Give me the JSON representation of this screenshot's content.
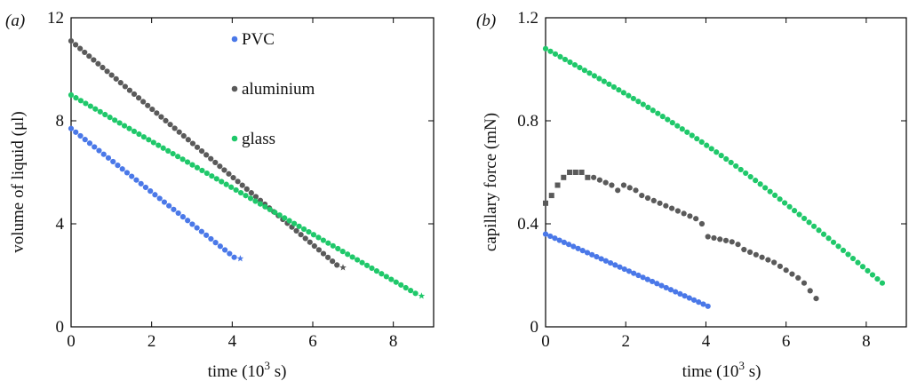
{
  "colors": {
    "PVC": "#4a78e8",
    "aluminium": "#5a5a5a",
    "glass": "#1fc86a"
  },
  "chart_data": [
    {
      "type": "scatter",
      "panel_label": "(a)",
      "xlabel": "time (10",
      "xlabel_sup": "3",
      "xlabel_end": " s)",
      "ylabel": "volume of liquid (μl)",
      "xlim": [
        0,
        9
      ],
      "ylim": [
        0,
        12
      ],
      "xticks": [
        0,
        2,
        4,
        6,
        8
      ],
      "yticks": [
        0,
        4,
        8,
        12
      ],
      "legend": {
        "position": "top-center",
        "entries": [
          "PVC",
          "aluminium",
          "glass"
        ]
      },
      "series": [
        {
          "name": "PVC",
          "color": "#4a78e8",
          "x_start": 0.0,
          "x_end": 4.05,
          "y_start": 7.7,
          "y_end": 2.7,
          "n": 36,
          "end_marker": "star",
          "end_point": [
            4.2,
            2.65
          ]
        },
        {
          "name": "aluminium",
          "color": "#5a5a5a",
          "x_start": 0.0,
          "x_end": 6.6,
          "y_start": 11.1,
          "y_end": 2.4,
          "n": 60,
          "end_marker": "star",
          "end_point": [
            6.75,
            2.3
          ]
        },
        {
          "name": "glass",
          "color": "#1fc86a",
          "x_start": 0.0,
          "x_end": 8.55,
          "y_start": 9.0,
          "y_end": 1.3,
          "n": 72,
          "end_marker": "star",
          "end_point": [
            8.7,
            1.2
          ]
        }
      ]
    },
    {
      "type": "scatter",
      "panel_label": "(b)",
      "xlabel": "time (10",
      "xlabel_sup": "3",
      "xlabel_end": " s)",
      "ylabel": "capillary force (mN)",
      "xlim": [
        0,
        9
      ],
      "ylim": [
        0,
        1.2
      ],
      "xticks": [
        0,
        2,
        4,
        6,
        8
      ],
      "yticks": [
        0,
        0.4,
        0.8,
        1.2
      ],
      "ytick_labels": [
        "0",
        "0.4",
        "0.8",
        "1.2"
      ],
      "series": [
        {
          "name": "PVC",
          "color": "#4a78e8",
          "x_start": 0.0,
          "x_end": 4.05,
          "y_start": 0.36,
          "y_end": 0.08,
          "n": 36
        },
        {
          "name": "aluminium",
          "color": "#5a5a5a",
          "points": [
            [
              0.0,
              0.48
            ],
            [
              0.15,
              0.51
            ],
            [
              0.3,
              0.55
            ],
            [
              0.45,
              0.58
            ],
            [
              0.6,
              0.6
            ],
            [
              0.75,
              0.6
            ],
            [
              0.9,
              0.6
            ],
            [
              1.05,
              0.58
            ],
            [
              1.2,
              0.58
            ],
            [
              1.35,
              0.57
            ],
            [
              1.5,
              0.56
            ],
            [
              1.65,
              0.55
            ],
            [
              1.8,
              0.53
            ],
            [
              1.95,
              0.55
            ],
            [
              2.1,
              0.54
            ],
            [
              2.25,
              0.53
            ],
            [
              2.4,
              0.51
            ],
            [
              2.55,
              0.5
            ],
            [
              2.7,
              0.49
            ],
            [
              2.85,
              0.48
            ],
            [
              3.0,
              0.47
            ],
            [
              3.15,
              0.46
            ],
            [
              3.3,
              0.45
            ],
            [
              3.45,
              0.44
            ],
            [
              3.6,
              0.43
            ],
            [
              3.75,
              0.42
            ],
            [
              3.9,
              0.4
            ],
            [
              4.05,
              0.35
            ],
            [
              4.2,
              0.345
            ],
            [
              4.35,
              0.34
            ],
            [
              4.5,
              0.335
            ],
            [
              4.65,
              0.33
            ],
            [
              4.8,
              0.32
            ],
            [
              4.95,
              0.3
            ],
            [
              5.1,
              0.29
            ],
            [
              5.25,
              0.28
            ],
            [
              5.4,
              0.27
            ],
            [
              5.55,
              0.26
            ],
            [
              5.7,
              0.25
            ],
            [
              5.85,
              0.235
            ],
            [
              6.0,
              0.22
            ],
            [
              6.15,
              0.205
            ],
            [
              6.3,
              0.19
            ],
            [
              6.45,
              0.17
            ],
            [
              6.6,
              0.14
            ],
            [
              6.75,
              0.11
            ]
          ]
        },
        {
          "name": "glass",
          "color": "#1fc86a",
          "x_start": 0.0,
          "x_end": 8.4,
          "y_start": 1.08,
          "y_end": 0.17,
          "n": 70,
          "curve": 0.06
        }
      ]
    }
  ]
}
